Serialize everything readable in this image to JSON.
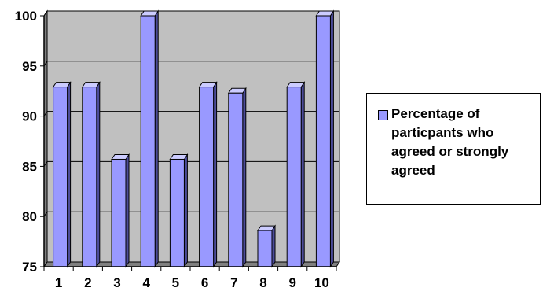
{
  "chart_data": {
    "type": "bar",
    "categories": [
      "1",
      "2",
      "3",
      "4",
      "5",
      "6",
      "7",
      "8",
      "9",
      "10"
    ],
    "series": [
      {
        "name": "Percentage of particpants who agreed or strongly agreed",
        "values": [
          92.9,
          92.9,
          85.7,
          100,
          85.7,
          92.9,
          92.3,
          78.6,
          92.9,
          100
        ]
      }
    ],
    "ylim": [
      75,
      100
    ],
    "yticks": [
      "75",
      "80",
      "85",
      "90",
      "95",
      "100"
    ],
    "grid": true,
    "legend_position": "right",
    "colors": {
      "bar_front": "#9999ff",
      "bar_side": "#4c4c99",
      "bar_top": "#ccccff",
      "plot_back": "#c0c0c0",
      "plot_floor": "#808080"
    }
  }
}
